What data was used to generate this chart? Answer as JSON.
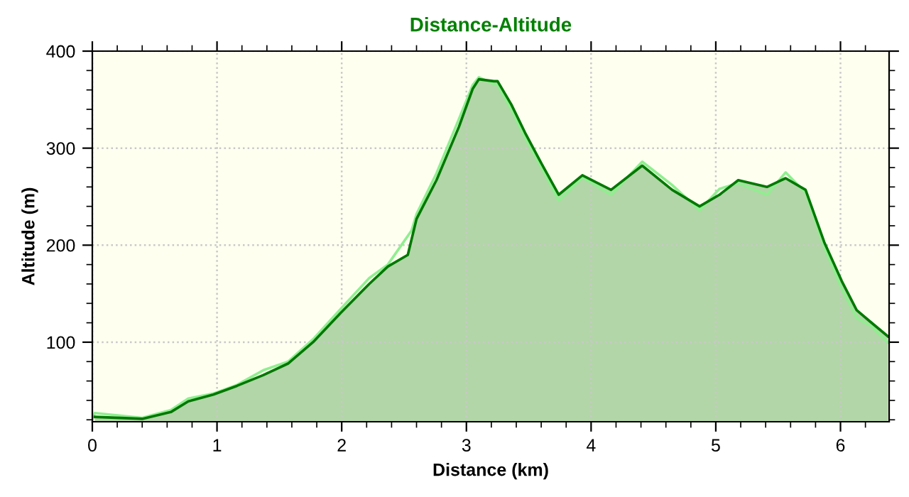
{
  "chart_data": {
    "type": "area",
    "title": "Distance-Altitude",
    "xlabel": "Distance (km)",
    "ylabel": "Altitude (m)",
    "xlim": [
      0,
      6.39
    ],
    "ylim": [
      18,
      400
    ],
    "xticks": [
      0,
      1,
      2,
      3,
      4,
      5,
      6
    ],
    "yticks": [
      100,
      200,
      300,
      400
    ],
    "grid": true,
    "line_style": "solid",
    "marker": "none",
    "series": [
      {
        "type": "line",
        "color": "#90ee90",
        "x": [
          0.0,
          0.02,
          0.4,
          0.63,
          0.77,
          0.97,
          1.16,
          1.37,
          1.57,
          1.77,
          1.99,
          2.22,
          2.37,
          2.56,
          2.6,
          2.76,
          2.94,
          3.05,
          3.1,
          3.22,
          3.25,
          3.36,
          3.47,
          3.59,
          3.74,
          3.93,
          4.16,
          4.41,
          4.65,
          4.87,
          5.03,
          5.18,
          5.41,
          5.56,
          5.72,
          5.87,
          6.01,
          6.13,
          6.24,
          6.38
        ],
        "values": [
          20,
          27,
          22,
          30,
          42,
          47,
          56,
          71,
          80,
          103,
          134,
          166,
          180,
          215,
          232,
          274,
          330,
          365,
          373,
          366,
          365,
          340,
          311,
          283,
          246,
          270,
          252,
          286,
          262,
          236,
          258,
          264,
          252,
          275,
          254,
          198,
          155,
          125,
          117,
          100
        ]
      },
      {
        "color": "#007800",
        "x": [
          0.02,
          0.4,
          0.63,
          0.77,
          0.97,
          1.16,
          1.37,
          1.57,
          1.77,
          1.99,
          2.22,
          2.37,
          2.53,
          2.6,
          2.76,
          2.94,
          3.05,
          3.1,
          3.22,
          3.25,
          3.36,
          3.47,
          3.59,
          3.74,
          3.93,
          4.16,
          4.41,
          4.65,
          4.87,
          5.03,
          5.18,
          5.41,
          5.56,
          5.72,
          5.87,
          6.01,
          6.13,
          6.24,
          6.38
        ],
        "values": [
          23,
          21,
          28,
          39,
          46,
          55,
          66,
          78,
          100,
          130,
          160,
          178,
          190,
          227,
          267,
          322,
          361,
          371,
          369,
          369,
          345,
          316,
          287,
          252,
          272,
          257,
          282,
          257,
          240,
          252,
          267,
          260,
          269,
          257,
          203,
          163,
          133,
          121,
          106
        ]
      }
    ]
  }
}
